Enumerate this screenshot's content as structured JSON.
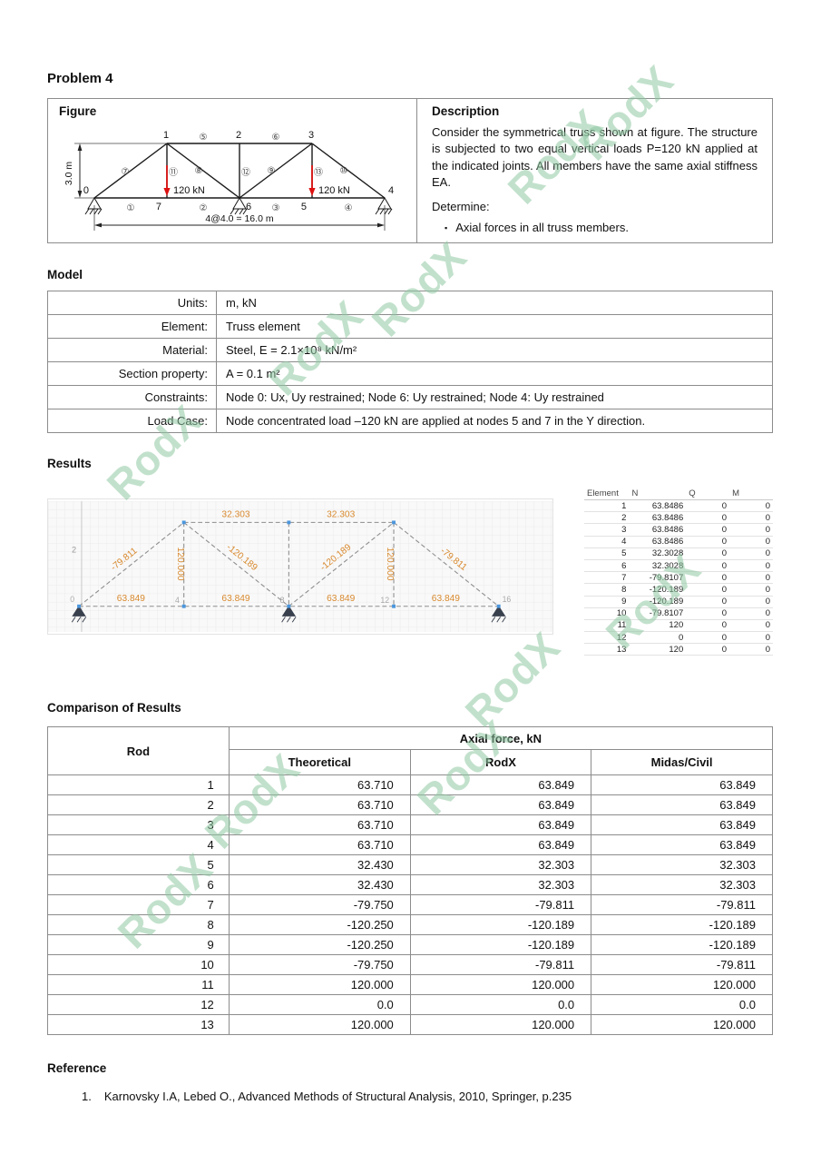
{
  "page": {
    "title": "Problem 4"
  },
  "figure": {
    "heading": "Figure",
    "node_labels": [
      "0",
      "1",
      "2",
      "3",
      "4",
      "5",
      "6",
      "7"
    ],
    "member_labels": [
      "①",
      "②",
      "③",
      "④",
      "⑤",
      "⑥",
      "⑦",
      "⑧",
      "⑨",
      "⑩",
      "⑪",
      "⑫",
      "⑬"
    ],
    "load_labels": [
      "120 kN",
      "120 kN"
    ],
    "dim_height": "3.0 m",
    "dim_span": "4@4.0 = 16.0 m"
  },
  "description": {
    "heading": "Description",
    "paragraph": "Consider the symmetrical truss shown at figure. The structure is subjected to two equal vertical loads P=120 kN applied at the indicated joints. All members have the same axial stiffness EA.",
    "determine_label": "Determine:",
    "bullet": "▪",
    "determine_item": "Axial forces in all truss members."
  },
  "model": {
    "heading": "Model",
    "rows": [
      [
        "Units:",
        "m, kN"
      ],
      [
        "Element:",
        "Truss element"
      ],
      [
        "Material:",
        "Steel, E = 2.1×10⁸ kN/m²"
      ],
      [
        "Section property:",
        "A = 0.1 m²"
      ],
      [
        "Constraints:",
        "Node 0: Ux, Uy restrained; Node 6: Uy restrained; Node 4: Uy restrained"
      ],
      [
        "Load Case:",
        "Node concentrated load –120 kN are applied at nodes 5 and 7 in the Y direction."
      ]
    ]
  },
  "results": {
    "heading": "Results",
    "diagram": {
      "bottom_forces": [
        "63.849",
        "63.849",
        "63.849",
        "63.849"
      ],
      "top_forces": [
        "32.303",
        "32.303"
      ],
      "diagonal_forces": [
        "-79.811",
        "-120.189",
        "-120.189",
        "-79.811"
      ],
      "vertical_forces": [
        "120.000",
        "120.000"
      ],
      "node_coords": [
        "0",
        "4",
        "8",
        "12",
        "16"
      ],
      "axis_tick": "2"
    },
    "element_table": {
      "headers": [
        "Element",
        "N",
        "Q",
        "M"
      ],
      "rows": [
        [
          "1",
          "63.8486",
          "0",
          "0"
        ],
        [
          "2",
          "63.8486",
          "0",
          "0"
        ],
        [
          "3",
          "63.8486",
          "0",
          "0"
        ],
        [
          "4",
          "63.8486",
          "0",
          "0"
        ],
        [
          "5",
          "32.3028",
          "0",
          "0"
        ],
        [
          "6",
          "32.3028",
          "0",
          "0"
        ],
        [
          "7",
          "-79.8107",
          "0",
          "0"
        ],
        [
          "8",
          "-120.189",
          "0",
          "0"
        ],
        [
          "9",
          "-120.189",
          "0",
          "0"
        ],
        [
          "10",
          "-79.8107",
          "0",
          "0"
        ],
        [
          "11",
          "120",
          "0",
          "0"
        ],
        [
          "12",
          "0",
          "0",
          "0"
        ],
        [
          "13",
          "120",
          "0",
          "0"
        ]
      ]
    }
  },
  "comparison": {
    "heading": "Comparison of Results",
    "col_rod": "Rod",
    "col_group": "Axial force, kN",
    "sub_headers": [
      "Theoretical",
      "RodX",
      "Midas/Civil"
    ],
    "rows": [
      [
        "1",
        "63.710",
        "63.849",
        "63.849"
      ],
      [
        "2",
        "63.710",
        "63.849",
        "63.849"
      ],
      [
        "3",
        "63.710",
        "63.849",
        "63.849"
      ],
      [
        "4",
        "63.710",
        "63.849",
        "63.849"
      ],
      [
        "5",
        "32.430",
        "32.303",
        "32.303"
      ],
      [
        "6",
        "32.430",
        "32.303",
        "32.303"
      ],
      [
        "7",
        "-79.750",
        "-79.811",
        "-79.811"
      ],
      [
        "8",
        "-120.250",
        "-120.189",
        "-120.189"
      ],
      [
        "9",
        "-120.250",
        "-120.189",
        "-120.189"
      ],
      [
        "10",
        "-79.750",
        "-79.811",
        "-79.811"
      ],
      [
        "11",
        "120.000",
        "120.000",
        "120.000"
      ],
      [
        "12",
        "0.0",
        "0.0",
        "0.0"
      ],
      [
        "13",
        "120.000",
        "120.000",
        "120.000"
      ]
    ]
  },
  "reference": {
    "heading": "Reference",
    "item_num": "1.",
    "item_text": "Karnovsky I.A, Lebed O., Advanced Methods of Structural Analysis, 2010, Springer, p.235"
  },
  "watermark": {
    "text": "RodX"
  },
  "colors": {
    "force_label": "#d8892e",
    "node_marker": "#4b96dd",
    "load_arrow": "#dd1111"
  }
}
